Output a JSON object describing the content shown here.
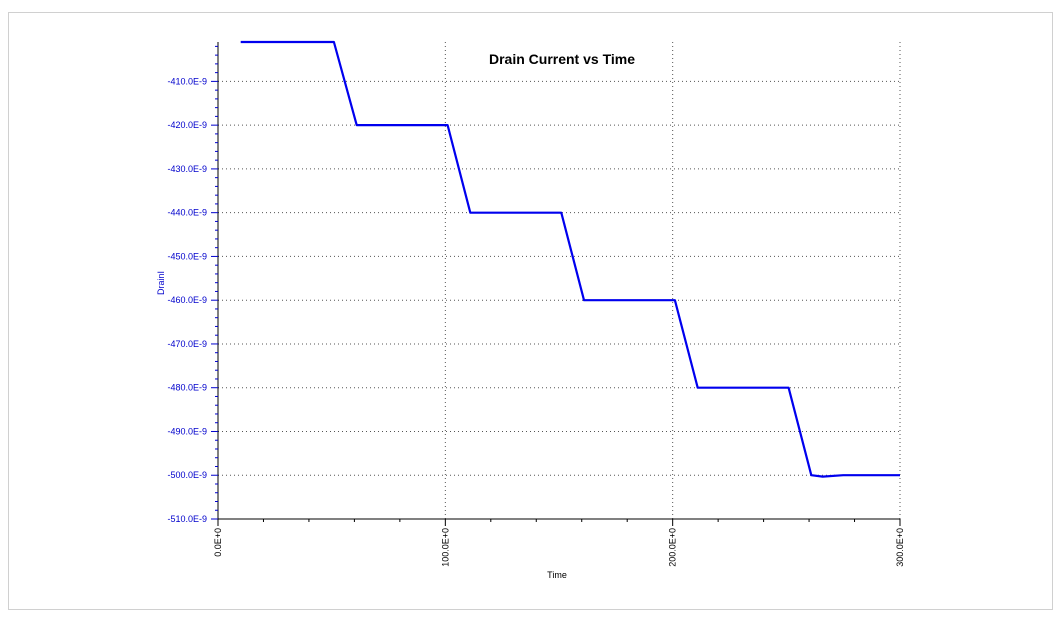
{
  "chart_data": {
    "type": "line",
    "title": "Drain Current vs Time",
    "xlabel": "Time",
    "ylabel": "DrainI",
    "xlim": [
      0,
      300
    ],
    "ylim": [
      -510,
      -401
    ],
    "x_unit_scale": "E+0",
    "y_unit_scale": "E-9",
    "x_ticks": [
      0,
      100,
      200,
      300
    ],
    "x_tick_labels": [
      "0.0E+0",
      "100.0E+0",
      "200.0E+0",
      "300.0E+0"
    ],
    "y_ticks": [
      -410,
      -420,
      -430,
      -440,
      -450,
      -460,
      -470,
      -480,
      -490,
      -500,
      -510
    ],
    "y_tick_labels": [
      "-410.0E-9",
      "-420.0E-9",
      "-430.0E-9",
      "-440.0E-9",
      "-450.0E-9",
      "-460.0E-9",
      "-470.0E-9",
      "-480.0E-9",
      "-490.0E-9",
      "-500.0E-9",
      "-510.0E-9"
    ],
    "grid": true,
    "colors": {
      "series": "#0000ee",
      "y_axis_text": "#0000cc",
      "grid": "#555555"
    },
    "series": [
      {
        "x": [
          10,
          51,
          61,
          101,
          111,
          151,
          161,
          201,
          211,
          251,
          261,
          266,
          275,
          300
        ],
        "y": [
          -401,
          -401,
          -420,
          -420,
          -440,
          -440,
          -460,
          -460,
          -480,
          -480,
          -500,
          -500.3,
          -500,
          -500
        ]
      }
    ]
  }
}
